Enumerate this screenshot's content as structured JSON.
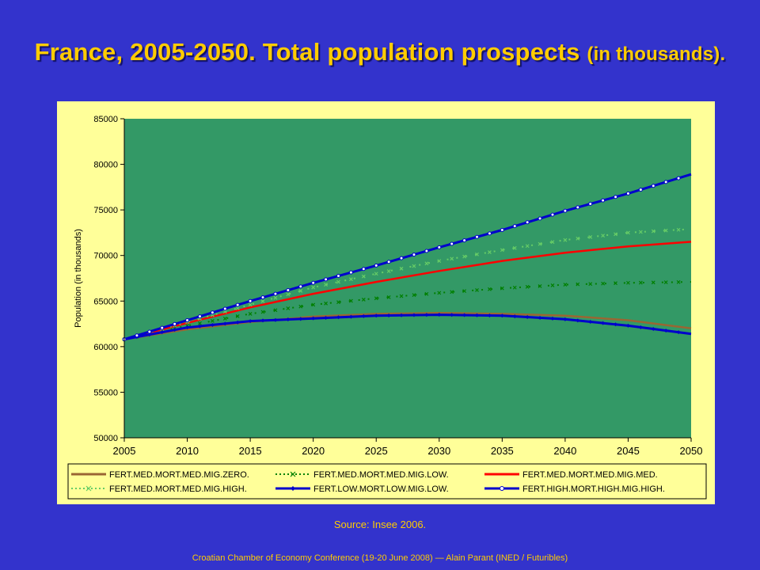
{
  "title": {
    "main": "France, 2005-2050. Total population prospects",
    "sub": "(in thousands)."
  },
  "source": "Source: Insee 2006.",
  "footer": "Croatian Chamber of Economy Conference (19-20 June 2008) — Alain Parant (INED / Futuribles)",
  "colors": {
    "slide_bg": "#3333cc",
    "title_text": "#ffcc00",
    "chart_bg": "#ffff99",
    "plot_bg": "#339966",
    "zero": "#996633",
    "low": "#008000",
    "med": "#ff0000",
    "high": "#66cc66",
    "series_blue": "#0000cc"
  },
  "chart_data": {
    "type": "line",
    "title": "",
    "xlabel": "",
    "ylabel": "Population (in thousands)",
    "xlim": [
      2005,
      2050
    ],
    "ylim": [
      50000,
      85000
    ],
    "x_ticks": [
      "2005",
      "2010",
      "2015",
      "2020",
      "2025",
      "2030",
      "2035",
      "2040",
      "2045",
      "2050"
    ],
    "y_ticks": [
      "50000",
      "55000",
      "60000",
      "65000",
      "70000",
      "75000",
      "80000",
      "85000"
    ],
    "grid": false,
    "legend_position": "bottom",
    "series": [
      {
        "name": "FERT.MED.MORT.MED.MIG.ZERO.",
        "color": "#996633",
        "style": "line",
        "x": [
          2005,
          2010,
          2015,
          2020,
          2025,
          2030,
          2035,
          2040,
          2045,
          2050
        ],
        "y": [
          60800,
          61900,
          62700,
          63300,
          63600,
          63700,
          63600,
          63400,
          62900,
          62000
        ]
      },
      {
        "name": "FERT.MED.MORT.MED.MIG.LOW.",
        "color": "#008000",
        "style": "dotted",
        "x": [
          2005,
          2010,
          2015,
          2020,
          2025,
          2030,
          2035,
          2040,
          2045,
          2050
        ],
        "y": [
          60800,
          62300,
          63600,
          64600,
          65300,
          65900,
          66400,
          66800,
          67000,
          67100
        ]
      },
      {
        "name": "FERT.MED.MORT.MED.MIG.MED.",
        "color": "#ff0000",
        "style": "line",
        "x": [
          2005,
          2010,
          2015,
          2020,
          2025,
          2030,
          2035,
          2040,
          2045,
          2050
        ],
        "y": [
          60800,
          62600,
          64300,
          65800,
          67100,
          68300,
          69400,
          70300,
          71000,
          71500
        ]
      },
      {
        "name": "FERT.MED.MORT.MED.MIG.HIGH.",
        "color": "#66cc66",
        "style": "dotted",
        "x": [
          2005,
          2010,
          2015,
          2020,
          2025,
          2030,
          2035,
          2040,
          2045,
          2050
        ],
        "y": [
          60800,
          62700,
          64600,
          66500,
          68000,
          69400,
          70600,
          71700,
          72500,
          72900
        ]
      },
      {
        "name": "FERT.LOW.MORT.LOW.MIG.LOW.",
        "color": "#0000cc",
        "style": "line-diamond",
        "x": [
          2005,
          2010,
          2015,
          2020,
          2025,
          2030,
          2035,
          2040,
          2045,
          2050
        ],
        "y": [
          60800,
          62100,
          62800,
          63100,
          63400,
          63500,
          63400,
          63000,
          62300,
          61400
        ]
      },
      {
        "name": "FERT.HIGH.MORT.HIGH.MIG.HIGH.",
        "color": "#0000cc",
        "style": "line-circle",
        "x": [
          2005,
          2010,
          2015,
          2020,
          2025,
          2030,
          2035,
          2040,
          2045,
          2050
        ],
        "y": [
          60800,
          62900,
          65000,
          67000,
          68900,
          70900,
          72800,
          74900,
          76800,
          78900
        ]
      }
    ]
  }
}
